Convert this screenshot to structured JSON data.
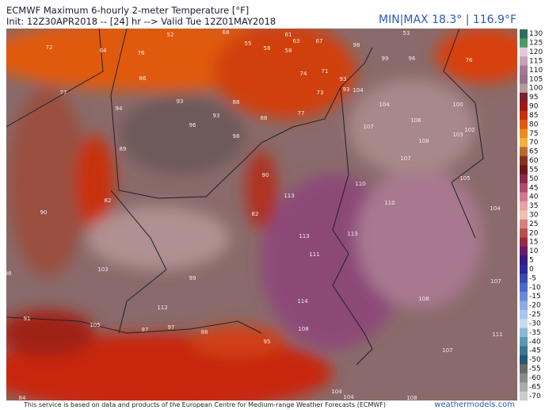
{
  "header": {
    "title": "ECMWF Maximum 6-hourly 2-meter Temperature [°F]",
    "init_line": "Init: 12Z30APR2018 -- [24] hr --> Valid Tue 12Z01MAY2018",
    "minmax": "MIN|MAX 18.3° | 116.9°F"
  },
  "colorbar": {
    "labels": [
      "130",
      "125",
      "120",
      "115",
      "110",
      "105",
      "100",
      "95",
      "90",
      "85",
      "80",
      "75",
      "70",
      "65",
      "60",
      "55",
      "50",
      "45",
      "40",
      "35",
      "30",
      "25",
      "20",
      "15",
      "10",
      "5",
      "0",
      "-5",
      "-10",
      "-15",
      "-20",
      "-25",
      "-30",
      "-35",
      "-40",
      "-45",
      "-50",
      "-55",
      "-60",
      "-65",
      "-70"
    ]
  },
  "map": {
    "labels": [
      "52",
      "64",
      "76",
      "72",
      "55",
      "58",
      "58",
      "61",
      "67",
      "63",
      "68",
      "53",
      "98",
      "99",
      "76",
      "96",
      "86",
      "77",
      "94",
      "93",
      "88",
      "74",
      "71",
      "93",
      "73",
      "93",
      "104",
      "104",
      "100",
      "93",
      "88",
      "77",
      "106",
      "96",
      "107",
      "102",
      "103",
      "98",
      "89",
      "108",
      "107",
      "90",
      "110",
      "105",
      "113",
      "82",
      "110",
      "104",
      "90",
      "82",
      "113",
      "113",
      "111",
      "103",
      "98",
      "99",
      "107",
      "114",
      "108",
      "112",
      "91",
      "105",
      "97",
      "97",
      "88",
      "108",
      "111",
      "95",
      "107",
      "104",
      "104",
      "108",
      "84"
    ]
  },
  "footer": {
    "text": "This service is based on data and products of the European Centre for Medium-range Weather Forecasts (ECMWF)",
    "watermark": "weathermodels.com"
  }
}
